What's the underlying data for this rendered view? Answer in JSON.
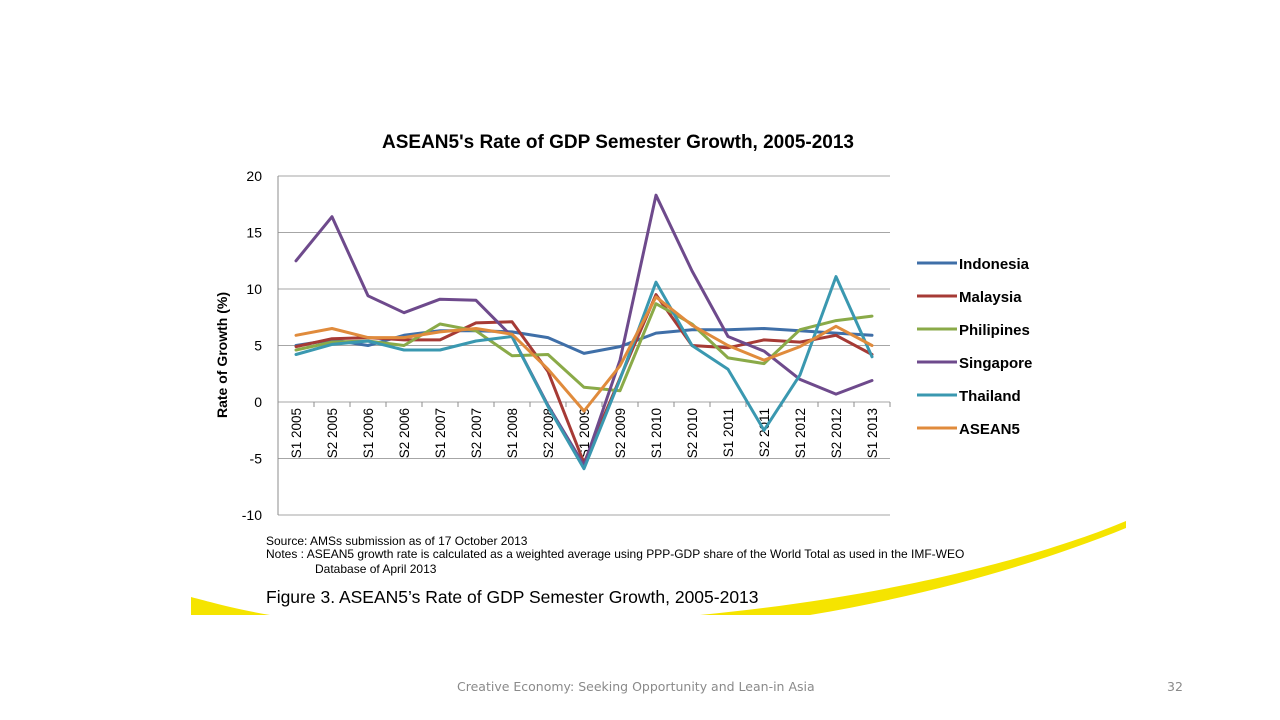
{
  "slide": {
    "footer_text": "Creative Economy: Seeking Opportunity and Lean-in Asia",
    "page_number": "32",
    "accent_color": "#f5e400"
  },
  "chart_data": {
    "type": "line",
    "title": "ASEAN5's Rate of GDP Semester Growth, 2005-2013",
    "ylabel": "Rate of Growth (%)",
    "xlabel": "",
    "ylim": [
      -10,
      20
    ],
    "yticks": [
      -10,
      -5,
      0,
      5,
      10,
      15,
      20
    ],
    "grid": true,
    "legend_position": "right",
    "categories": [
      "S1 2005",
      "S2  2005",
      "S1 2006",
      "S2 2006",
      "S1 2007",
      "S2 2007",
      "S1 2008",
      "S2 2008",
      "S1 2009",
      "S2 2009",
      "S1 2010",
      "S2 2010",
      "S1 2011",
      "S2 2011",
      "S1 2012",
      "S2 2012",
      "S1 2013"
    ],
    "series": [
      {
        "name": "Indonesia",
        "color": "#3f6fa8",
        "values": [
          5.0,
          5.5,
          5.0,
          5.9,
          6.3,
          6.3,
          6.2,
          5.7,
          4.3,
          4.9,
          6.1,
          6.4,
          6.4,
          6.5,
          6.3,
          6.1,
          5.9
        ]
      },
      {
        "name": "Malaysia",
        "color": "#a63a35",
        "values": [
          4.9,
          5.6,
          5.7,
          5.5,
          5.5,
          7.0,
          7.1,
          2.7,
          -5.4,
          2.1,
          9.5,
          5.0,
          4.8,
          5.5,
          5.3,
          5.9,
          4.2
        ]
      },
      {
        "name": "Philipines",
        "color": "#8aaa48",
        "values": [
          4.6,
          5.3,
          5.4,
          5.0,
          6.9,
          6.3,
          4.1,
          4.2,
          1.3,
          1.0,
          8.7,
          6.9,
          3.9,
          3.4,
          6.4,
          7.2,
          7.6
        ]
      },
      {
        "name": "Singapore",
        "color": "#6e4a8c",
        "values": [
          12.5,
          16.4,
          9.4,
          7.9,
          9.1,
          9.0,
          5.8,
          -0.3,
          -5.6,
          3.7,
          18.3,
          11.6,
          5.8,
          4.5,
          2.0,
          0.7,
          1.9
        ]
      },
      {
        "name": "Thailand",
        "color": "#3a98b0",
        "values": [
          4.2,
          5.1,
          5.4,
          4.6,
          4.6,
          5.4,
          5.8,
          -0.4,
          -5.9,
          2.0,
          10.6,
          5.0,
          2.9,
          -2.5,
          2.4,
          11.1,
          4.0
        ]
      },
      {
        "name": "ASEAN5",
        "color": "#e08b3c",
        "values": [
          5.9,
          6.5,
          5.7,
          5.7,
          6.2,
          6.5,
          6.0,
          2.9,
          -0.8,
          3.2,
          9.3,
          6.8,
          5.0,
          3.7,
          4.9,
          6.7,
          5.0
        ]
      }
    ],
    "source_note": "Source: AMSs submission as of 17 October 2013",
    "notes_line1": "Notes  : ASEAN5 growth rate is calculated as a weighted average using PPP-GDP share of the World Total as used in the IMF-WEO",
    "notes_line2": "Database of April 2013",
    "figure_caption": "Figure 3. ASEAN5’s Rate of GDP Semester Growth, 2005-2013"
  }
}
